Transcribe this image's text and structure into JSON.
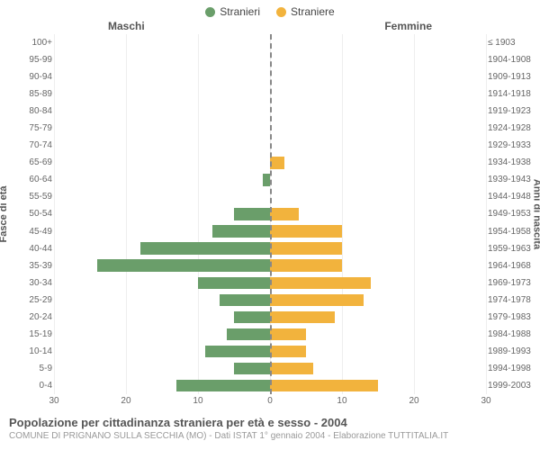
{
  "legend": {
    "male": {
      "label": "Stranieri",
      "color": "#6a9e6a"
    },
    "female": {
      "label": "Straniere",
      "color": "#f2b33d"
    }
  },
  "headers": {
    "left": "Maschi",
    "right": "Femmine"
  },
  "axis_titles": {
    "left": "Fasce di età",
    "right": "Anni di nascita"
  },
  "age_labels": [
    "100+",
    "95-99",
    "90-94",
    "85-89",
    "80-84",
    "75-79",
    "70-74",
    "65-69",
    "60-64",
    "55-59",
    "50-54",
    "45-49",
    "40-44",
    "35-39",
    "30-34",
    "25-29",
    "20-24",
    "15-19",
    "10-14",
    "5-9",
    "0-4"
  ],
  "birth_labels": [
    "≤ 1903",
    "1904-1908",
    "1909-1913",
    "1914-1918",
    "1919-1923",
    "1924-1928",
    "1929-1933",
    "1934-1938",
    "1939-1943",
    "1944-1948",
    "1949-1953",
    "1954-1958",
    "1959-1963",
    "1964-1968",
    "1969-1973",
    "1974-1978",
    "1979-1983",
    "1984-1988",
    "1989-1993",
    "1994-1998",
    "1999-2003"
  ],
  "chart": {
    "type": "population-pyramid",
    "x_max": 30,
    "x_ticks": [
      30,
      20,
      10,
      0,
      10,
      20,
      30
    ],
    "grid_color": "#eeeeee",
    "centerline_color": "#888888",
    "background_color": "#ffffff",
    "bar_height_ratio": 0.7,
    "label_fontsize": 10,
    "male_values": [
      0,
      0,
      0,
      0,
      0,
      0,
      0,
      0,
      1,
      0,
      5,
      8,
      18,
      24,
      10,
      7,
      5,
      6,
      9,
      5,
      13
    ],
    "female_values": [
      0,
      0,
      0,
      0,
      0,
      0,
      0,
      2,
      0,
      0,
      4,
      10,
      10,
      10,
      14,
      13,
      9,
      5,
      5,
      6,
      15
    ]
  },
  "caption": {
    "title": "Popolazione per cittadinanza straniera per età e sesso - 2004",
    "subtitle": "COMUNE DI PRIGNANO SULLA SECCHIA (MO) - Dati ISTAT 1° gennaio 2004 - Elaborazione TUTTITALIA.IT"
  }
}
